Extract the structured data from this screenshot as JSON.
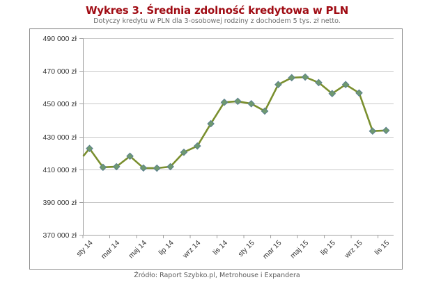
{
  "header": {
    "title": "Wykres 3. Średnia zdolność kredytowa w PLN",
    "subtitle": "Dotyczy kredytu w PLN dla 3-osobowej rodziny z dochodem 5 tys. zł netto."
  },
  "footer": {
    "source": "Źródło: Raport Szybko.pl, Metrohouse i Expandera"
  },
  "colors": {
    "title": "#a00c14",
    "line": "#7a8f2e",
    "marker_fill": "#6f9a6e",
    "marker_border": "#5b7f8f",
    "grid": "#c8c8c8"
  },
  "chart_data": {
    "type": "line",
    "title": "Wykres 3. Średnia zdolność kredytowa w PLN",
    "subtitle": "Dotyczy kredytu w PLN dla 3-osobowej rodziny z dochodem 5 tys. zł netto.",
    "xlabel": "",
    "ylabel": "",
    "ylim": [
      370000,
      490000
    ],
    "y_ticks": [
      370000,
      390000,
      410000,
      430000,
      450000,
      470000,
      490000
    ],
    "y_tick_labels": [
      "370 000 zł",
      "390 000 zł",
      "410 000 zł",
      "430 000 zł",
      "450 000 zł",
      "470 000 zł",
      "490 000 zł"
    ],
    "x_tick_labels": [
      "sty 14",
      "mar 14",
      "maj 14",
      "lip 14",
      "wrz 14",
      "lis 14",
      "sty 15",
      "mar 15",
      "maj 15",
      "lip 15",
      "wrz 15",
      "lis 15"
    ],
    "grid": true,
    "legend": null,
    "line_start_value_at_axis": 418000,
    "categories": [
      "sty 14",
      "lut 14",
      "mar 14",
      "kwi 14",
      "maj 14",
      "cze 14",
      "lip 14",
      "sie 14",
      "wrz 14",
      "paź 14",
      "lis 14",
      "gru 14",
      "sty 15",
      "lut 15",
      "mar 15",
      "kwi 15",
      "maj 15",
      "cze 15",
      "lip 15",
      "sie 15",
      "wrz 15",
      "paź 15",
      "lis 15"
    ],
    "series": [
      {
        "name": "Średnia zdolność kredytowa",
        "values": [
          422700,
          411200,
          411600,
          418000,
          410800,
          410700,
          411600,
          420400,
          424200,
          437800,
          450900,
          451500,
          450000,
          445500,
          461700,
          465900,
          466300,
          462900,
          456200,
          461700,
          456600,
          433300,
          433700
        ]
      }
    ]
  }
}
